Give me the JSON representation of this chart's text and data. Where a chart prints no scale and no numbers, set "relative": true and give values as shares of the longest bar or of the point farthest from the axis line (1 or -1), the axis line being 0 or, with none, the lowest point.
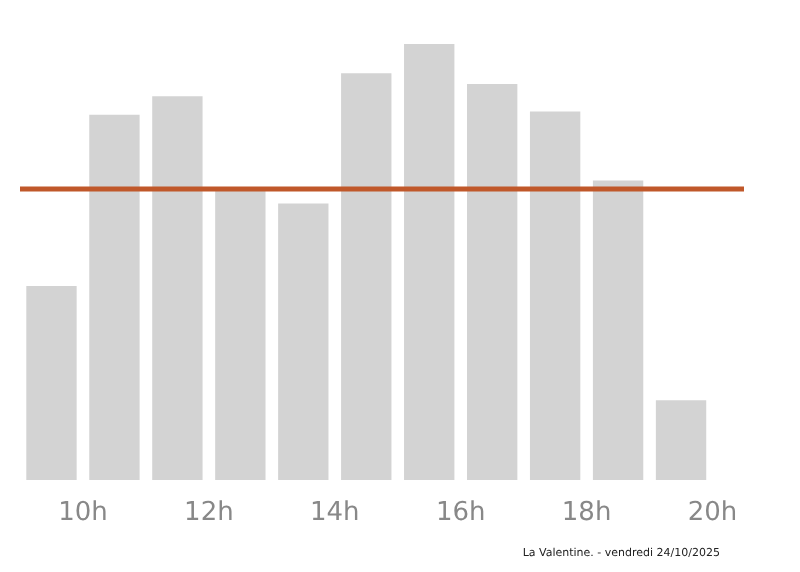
{
  "chart_data": {
    "type": "bar",
    "relative": true,
    "x": [
      9.5,
      10.5,
      11.5,
      12.5,
      13.5,
      14.5,
      15.5,
      16.5,
      17.5,
      18.5,
      19.5
    ],
    "values": [
      0.445,
      0.838,
      0.88,
      0.664,
      0.634,
      0.933,
      1,
      0.908,
      0.845,
      0.687,
      0.183
    ],
    "color": "#d3d3d3",
    "xlim": [
      9,
      20.5
    ],
    "xticks": [
      {
        "value": 10,
        "label": "10h"
      },
      {
        "value": 12,
        "label": "12h"
      },
      {
        "value": 14,
        "label": "14h"
      },
      {
        "value": 16,
        "label": "16h"
      },
      {
        "value": 18,
        "label": "18h"
      },
      {
        "value": 20,
        "label": "20h"
      }
    ],
    "ref_lines": [
      {
        "axis": "y",
        "value": 0.669,
        "label": null,
        "color": "#c0582a"
      }
    ],
    "grid": false,
    "annotations": [
      "La Valentine. - vendredi 24/10/2025"
    ]
  }
}
